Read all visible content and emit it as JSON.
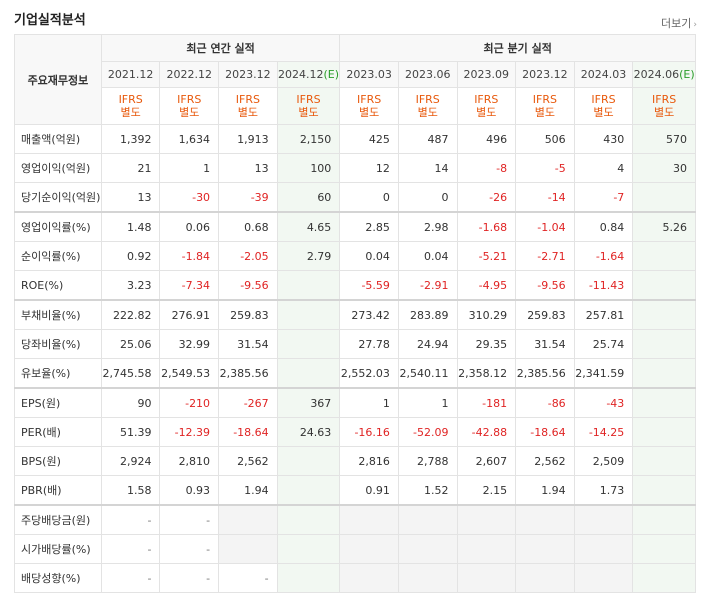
{
  "header": {
    "title": "기업실적분석",
    "more_label": "더보기",
    "more_chev": "›"
  },
  "table": {
    "corner_label": "주요재무정보",
    "group_annual": "최근 연간 실적",
    "group_quarter": "최근 분기 실적",
    "periods": [
      "2021.12",
      "2022.12",
      "2023.12",
      "2024.12",
      "2023.03",
      "2023.06",
      "2023.09",
      "2023.12",
      "2024.03",
      "2024.06"
    ],
    "est_mark": "(E)",
    "ifrs_top": "IFRS",
    "ifrs_bottom": "별도",
    "rows": [
      {
        "label": "매출액(억원)",
        "values": [
          "1,392",
          "1,634",
          "1,913",
          "2,150",
          "425",
          "487",
          "496",
          "506",
          "430",
          "570"
        ]
      },
      {
        "label": "영업이익(억원)",
        "values": [
          "21",
          "1",
          "13",
          "100",
          "12",
          "14",
          "-8",
          "-5",
          "4",
          "30"
        ]
      },
      {
        "label": "당기순이익(억원)",
        "values": [
          "13",
          "-30",
          "-39",
          "60",
          "0",
          "0",
          "-26",
          "-14",
          "-7",
          ""
        ]
      },
      {
        "label": "영업이익률(%)",
        "values": [
          "1.48",
          "0.06",
          "0.68",
          "4.65",
          "2.85",
          "2.98",
          "-1.68",
          "-1.04",
          "0.84",
          "5.26"
        ]
      },
      {
        "label": "순이익률(%)",
        "values": [
          "0.92",
          "-1.84",
          "-2.05",
          "2.79",
          "0.04",
          "0.04",
          "-5.21",
          "-2.71",
          "-1.64",
          ""
        ]
      },
      {
        "label": "ROE(%)",
        "values": [
          "3.23",
          "-7.34",
          "-9.56",
          "",
          "-5.59",
          "-2.91",
          "-4.95",
          "-9.56",
          "-11.43",
          ""
        ]
      },
      {
        "label": "부채비율(%)",
        "values": [
          "222.82",
          "276.91",
          "259.83",
          "",
          "273.42",
          "283.89",
          "310.29",
          "259.83",
          "257.81",
          ""
        ]
      },
      {
        "label": "당좌비율(%)",
        "values": [
          "25.06",
          "32.99",
          "31.54",
          "",
          "27.78",
          "24.94",
          "29.35",
          "31.54",
          "25.74",
          ""
        ]
      },
      {
        "label": "유보율(%)",
        "values": [
          "2,745.58",
          "2,549.53",
          "2,385.56",
          "",
          "2,552.03",
          "2,540.11",
          "2,358.12",
          "2,385.56",
          "2,341.59",
          ""
        ]
      },
      {
        "label": "EPS(원)",
        "values": [
          "90",
          "-210",
          "-267",
          "367",
          "1",
          "1",
          "-181",
          "-86",
          "-43",
          ""
        ]
      },
      {
        "label": "PER(배)",
        "values": [
          "51.39",
          "-12.39",
          "-18.64",
          "24.63",
          "-16.16",
          "-52.09",
          "-42.88",
          "-18.64",
          "-14.25",
          ""
        ]
      },
      {
        "label": "BPS(원)",
        "values": [
          "2,924",
          "2,810",
          "2,562",
          "",
          "2,816",
          "2,788",
          "2,607",
          "2,562",
          "2,509",
          ""
        ]
      },
      {
        "label": "PBR(배)",
        "values": [
          "1.58",
          "0.93",
          "1.94",
          "",
          "0.91",
          "1.52",
          "2.15",
          "1.94",
          "1.73",
          ""
        ]
      },
      {
        "label": "주당배당금(원)",
        "values": [
          "-",
          "-",
          "",
          "",
          "",
          "",
          "",
          "",
          "",
          ""
        ]
      },
      {
        "label": "시가배당률(%)",
        "values": [
          "-",
          "-",
          "",
          "",
          "",
          "",
          "",
          "",
          "",
          ""
        ]
      },
      {
        "label": "배당성향(%)",
        "values": [
          "-",
          "-",
          "-",
          "",
          "",
          "",
          "",
          "",
          "",
          ""
        ]
      }
    ]
  }
}
